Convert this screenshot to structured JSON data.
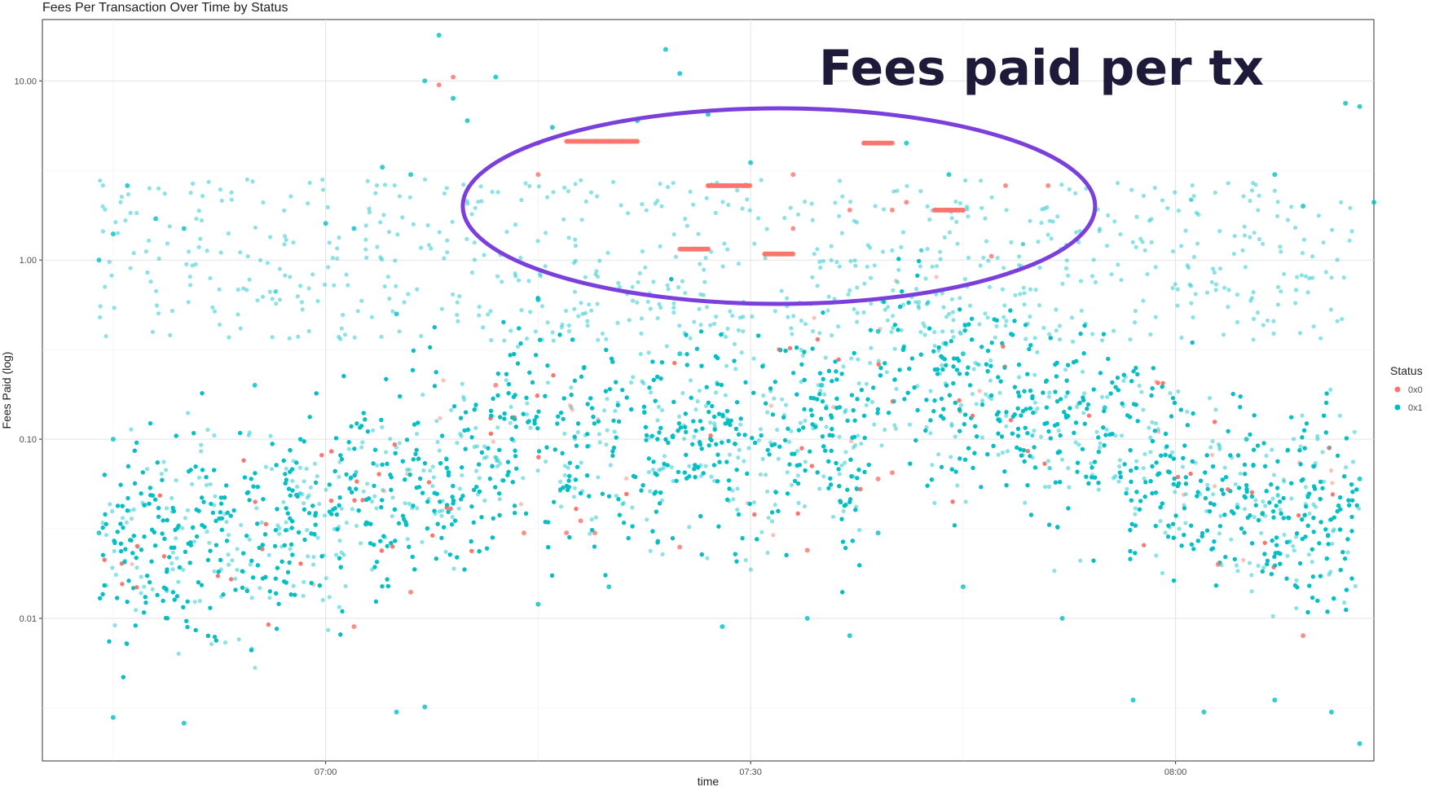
{
  "chart_data": {
    "type": "scatter",
    "title": "Fees Per Transaction Over Time by Status",
    "xlabel": "time",
    "ylabel": "Fees Paid (log)",
    "y_scale": "log10",
    "ylim": [
      0.0016,
      22
    ],
    "xlim": [
      "06:40",
      "08:14"
    ],
    "grid": true,
    "x_ticks": [
      "07:00",
      "07:30",
      "08:00"
    ],
    "y_ticks": [
      "0.01",
      "0.10",
      "1.00",
      "10.00"
    ],
    "y_tick_values": [
      0.01,
      0.1,
      1,
      10
    ],
    "legend": {
      "title": "Status",
      "placement": "right",
      "entries": [
        "0x0",
        "0x1"
      ]
    },
    "series": [
      {
        "name": "0x0",
        "color": "#F8766D",
        "points": [
          [
            "07:15",
            3.0
          ],
          [
            "07:15",
            4.5
          ],
          [
            "07:18",
            4.6
          ],
          [
            "07:19",
            4.6
          ],
          [
            "07:20",
            4.6
          ],
          [
            "07:21",
            4.6
          ],
          [
            "07:22",
            4.6
          ],
          [
            "07:27",
            2.6
          ],
          [
            "07:28",
            2.6
          ],
          [
            "07:29",
            2.6
          ],
          [
            "07:26",
            1.15
          ],
          [
            "07:27",
            1.15
          ],
          [
            "07:31",
            1.08
          ],
          [
            "07:32",
            1.08
          ],
          [
            "07:33",
            1.5
          ],
          [
            "07:33",
            3.0
          ],
          [
            "07:38",
            4.5
          ],
          [
            "07:39",
            4.5
          ],
          [
            "07:37",
            1.9
          ],
          [
            "07:40",
            1.9
          ],
          [
            "07:41",
            2.1
          ],
          [
            "07:43",
            1.9
          ],
          [
            "07:44",
            1.9
          ],
          [
            "07:45",
            1.9
          ],
          [
            "07:48",
            2.6
          ],
          [
            "07:51",
            2.6
          ],
          [
            "07:17",
            0.03
          ],
          [
            "07:18",
            0.035
          ],
          [
            "07:19",
            0.03
          ],
          [
            "07:39",
            0.06
          ],
          [
            "07:40",
            0.065
          ],
          [
            "07:08",
            9.5
          ],
          [
            "07:09",
            10.5
          ],
          [
            "07:02",
            0.009
          ],
          [
            "07:06",
            0.014
          ],
          [
            "07:25",
            0.025
          ],
          [
            "07:34",
            0.024
          ],
          [
            "07:14",
            0.03
          ],
          [
            "07:47",
            1.05
          ],
          [
            "07:12",
            0.2
          ],
          [
            "08:03",
            0.02
          ],
          [
            "08:09",
            0.008
          ]
        ]
      },
      {
        "name": "0x1",
        "color": "#00BFC4",
        "points": [
          [
            "06:44",
            0.03
          ],
          [
            "06:44",
            1.0
          ],
          [
            "06:45",
            1.4
          ],
          [
            "06:46",
            2.6
          ],
          [
            "06:48",
            1.7
          ],
          [
            "06:50",
            1.5
          ],
          [
            "07:00",
            1.6
          ],
          [
            "07:02",
            1.5
          ],
          [
            "07:04",
            3.3
          ],
          [
            "07:06",
            3.0
          ],
          [
            "07:07",
            10.0
          ],
          [
            "07:08",
            18.0
          ],
          [
            "07:09",
            8.0
          ],
          [
            "07:10",
            6.0
          ],
          [
            "07:12",
            10.5
          ],
          [
            "07:16",
            5.5
          ],
          [
            "07:22",
            6.0
          ],
          [
            "07:24",
            15.0
          ],
          [
            "07:25",
            11.0
          ],
          [
            "07:27",
            6.5
          ],
          [
            "07:30",
            3.5
          ],
          [
            "07:41",
            4.5
          ],
          [
            "07:44",
            3.0
          ],
          [
            "08:07",
            3.0
          ],
          [
            "08:12",
            7.5
          ],
          [
            "08:13",
            7.2
          ],
          [
            "08:09",
            2.0
          ],
          [
            "08:14",
            2.1
          ],
          [
            "08:13",
            0.002
          ],
          [
            "06:45",
            0.0028
          ],
          [
            "06:50",
            0.0026
          ],
          [
            "07:05",
            0.003
          ],
          [
            "07:07",
            0.0032
          ],
          [
            "07:15",
            0.012
          ],
          [
            "07:20",
            0.015
          ],
          [
            "07:28",
            0.009
          ],
          [
            "07:34",
            0.01
          ],
          [
            "07:37",
            0.008
          ],
          [
            "07:39",
            0.03
          ],
          [
            "07:45",
            0.015
          ],
          [
            "07:52",
            0.01
          ],
          [
            "07:57",
            0.0035
          ],
          [
            "08:02",
            0.003
          ],
          [
            "08:07",
            0.0035
          ],
          [
            "08:11",
            0.003
          ],
          [
            "06:45",
            0.1
          ],
          [
            "06:55",
            0.2
          ],
          [
            "07:05",
            0.5
          ],
          [
            "07:15",
            0.6
          ],
          [
            "07:25",
            0.3
          ],
          [
            "07:35",
            0.2
          ],
          [
            "07:39",
            0.4
          ],
          [
            "07:45",
            0.3
          ],
          [
            "07:55",
            0.15
          ],
          [
            "08:05",
            0.1
          ],
          [
            "08:13",
            0.06
          ]
        ]
      }
    ],
    "annotation": {
      "text": "Fees paid per tx",
      "shape": "ellipse",
      "color": "#7B3FDB",
      "center": [
        "07:32",
        2.0
      ]
    }
  }
}
